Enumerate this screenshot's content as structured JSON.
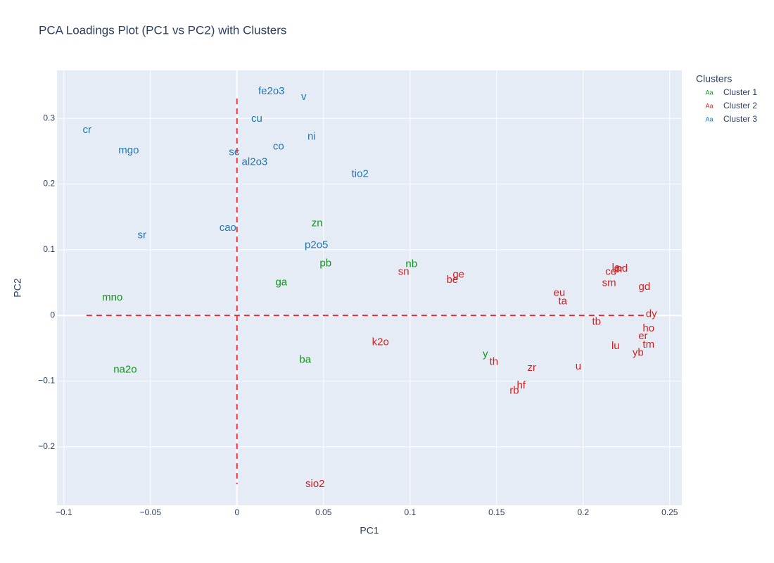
{
  "chart_data": {
    "type": "scatter",
    "title": "PCA Loadings Plot (PC1 vs PC2) with Clusters",
    "x_label": "PC1",
    "y_label": "PC2",
    "legend_title": "Clusters",
    "legend_symbol": "Aa",
    "legend_position": "right",
    "grid": true,
    "xlim": [
      -0.104,
      0.257
    ],
    "ylim": [
      -0.289,
      0.373
    ],
    "xticks": [
      {
        "value": -0.1,
        "label": "−0.1"
      },
      {
        "value": -0.05,
        "label": "−0.05"
      },
      0,
      0.05,
      0.1,
      0.15,
      0.2,
      0.25
    ],
    "yticks": [
      {
        "value": -0.2,
        "label": "−0.2"
      },
      {
        "value": -0.1,
        "label": "−0.1"
      },
      0,
      0.1,
      0.2,
      0.3
    ],
    "reference_lines": [
      {
        "orientation": "horizontal",
        "value": 0,
        "from": -0.087,
        "to": 0.237,
        "color": "#e8262b"
      },
      {
        "orientation": "vertical",
        "value": 0,
        "from": -0.257,
        "to": 0.33,
        "color": "#e8262b"
      }
    ],
    "series": [
      {
        "name": "Cluster 1",
        "color": "#109618",
        "labels": [
          "zn",
          "pb",
          "nb",
          "ga",
          "mno",
          "ba",
          "na2o",
          "y"
        ],
        "x": [
          0.0463,
          0.0512,
          0.1008,
          0.0256,
          -0.072,
          0.0394,
          -0.0646,
          0.1435
        ],
        "values": [
          0.14,
          0.079,
          0.078,
          0.05,
          0.027,
          -0.068,
          -0.083,
          -0.059
        ]
      },
      {
        "name": "Cluster 2",
        "color": "#d62020",
        "labels": [
          "sn",
          "be",
          "ge",
          "la",
          "ce",
          "pr",
          "nd",
          "sm",
          "gd",
          "eu",
          "ta",
          "tb",
          "dy",
          "ho",
          "er",
          "tm",
          "yb",
          "lu",
          "u",
          "k2o",
          "th",
          "zr",
          "hf",
          "rb",
          "sio2"
        ],
        "x": [
          0.0963,
          0.1244,
          0.128,
          0.219,
          0.216,
          0.2205,
          0.2224,
          0.215,
          0.2354,
          0.1862,
          0.1882,
          0.2077,
          0.2394,
          0.2378,
          0.2346,
          0.2378,
          0.2317,
          0.2187,
          0.1972,
          0.0829,
          0.1484,
          0.1703,
          0.1642,
          0.1602,
          0.0451
        ],
        "values": [
          0.066,
          0.054,
          0.062,
          0.072,
          0.066,
          0.07,
          0.071,
          0.049,
          0.043,
          0.034,
          0.021,
          -0.01,
          0.002,
          -0.02,
          -0.032,
          -0.045,
          -0.057,
          -0.047,
          -0.078,
          -0.041,
          -0.071,
          -0.08,
          -0.107,
          -0.115,
          -0.257
        ]
      },
      {
        "name": "Cluster 3",
        "color": "#1f77b4",
        "labels": [
          "fe2o3",
          "v",
          "cr",
          "cu",
          "ni",
          "mgo",
          "co",
          "sc",
          "al2o3",
          "tio2",
          "sr",
          "cao",
          "p2o5"
        ],
        "x": [
          0.0199,
          0.0386,
          -0.0866,
          0.0114,
          0.0431,
          -0.0626,
          0.024,
          -0.0016,
          0.0102,
          0.0711,
          -0.0549,
          -0.0053,
          0.0459
        ],
        "values": [
          0.341,
          0.332,
          0.282,
          0.299,
          0.272,
          0.251,
          0.257,
          0.248,
          0.233,
          0.215,
          0.122,
          0.133,
          0.107
        ]
      }
    ]
  }
}
